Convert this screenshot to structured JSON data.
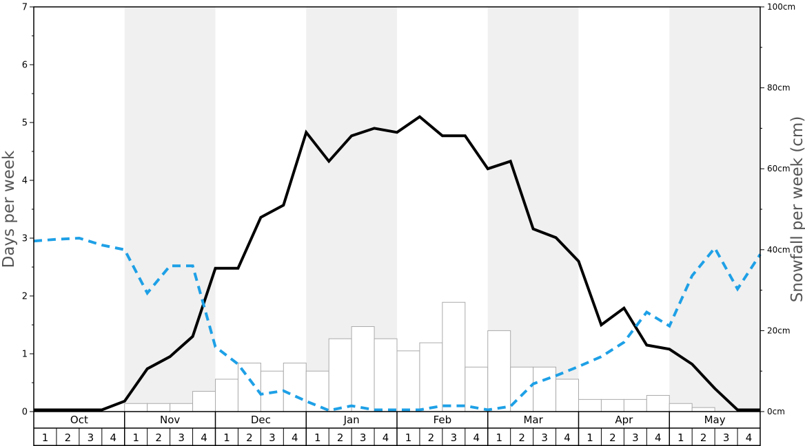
{
  "chart_data": {
    "type": "bar",
    "months": [
      "Oct",
      "Nov",
      "Dec",
      "Jan",
      "Feb",
      "Mar",
      "Apr",
      "May"
    ],
    "weeks": [
      "1",
      "2",
      "3",
      "4"
    ],
    "ylabel": "Days per week",
    "y2label": "Snowfall per week (cm)",
    "ylim": [
      0,
      7
    ],
    "y_ticks": [
      "0",
      "1",
      "2",
      "3",
      "4",
      "5",
      "6",
      "7"
    ],
    "y2lim": [
      0,
      100
    ],
    "y2_ticks": [
      "0cm",
      "20cm",
      "40cm",
      "60cm",
      "80cm",
      "100cm"
    ],
    "series": [
      {
        "kind": "bar",
        "axis": "right",
        "values": [
          0,
          0,
          0,
          0,
          2,
          2,
          2,
          5,
          8,
          12,
          10,
          12,
          10,
          18,
          21,
          18,
          15,
          17,
          27,
          11,
          20,
          11,
          11,
          8,
          3,
          3,
          3,
          4,
          2,
          1,
          0,
          0
        ]
      },
      {
        "kind": "line",
        "axis": "left",
        "style": "solid",
        "color": "#000000",
        "values": [
          0.03,
          0.03,
          0.03,
          0.03,
          0.18,
          0.74,
          0.95,
          1.3,
          2.48,
          2.48,
          3.36,
          3.57,
          4.83,
          4.33,
          4.77,
          4.9,
          4.83,
          5.1,
          4.77,
          4.77,
          4.2,
          4.33,
          3.16,
          3.01,
          2.6,
          1.5,
          1.79,
          1.15,
          1.08,
          0.82,
          0.4,
          0.03,
          0.03
        ]
      },
      {
        "kind": "line",
        "axis": "left",
        "style": "dashed",
        "color": "#1ea0e6",
        "values": [
          2.95,
          2.98,
          3.0,
          2.88,
          2.8,
          2.05,
          2.52,
          2.52,
          1.12,
          0.82,
          0.3,
          0.36,
          0.18,
          0.02,
          0.1,
          0.03,
          0.03,
          0.03,
          0.1,
          0.1,
          0.03,
          0.09,
          0.48,
          0.62,
          0.78,
          0.95,
          1.2,
          1.72,
          1.48,
          2.35,
          2.83,
          2.12,
          2.72
        ]
      }
    ],
    "colors": {
      "band": "#f0f0f0",
      "bar_fill": "#ffffff",
      "bar_stroke": "#aaaaaa",
      "frame": "#000000"
    }
  }
}
